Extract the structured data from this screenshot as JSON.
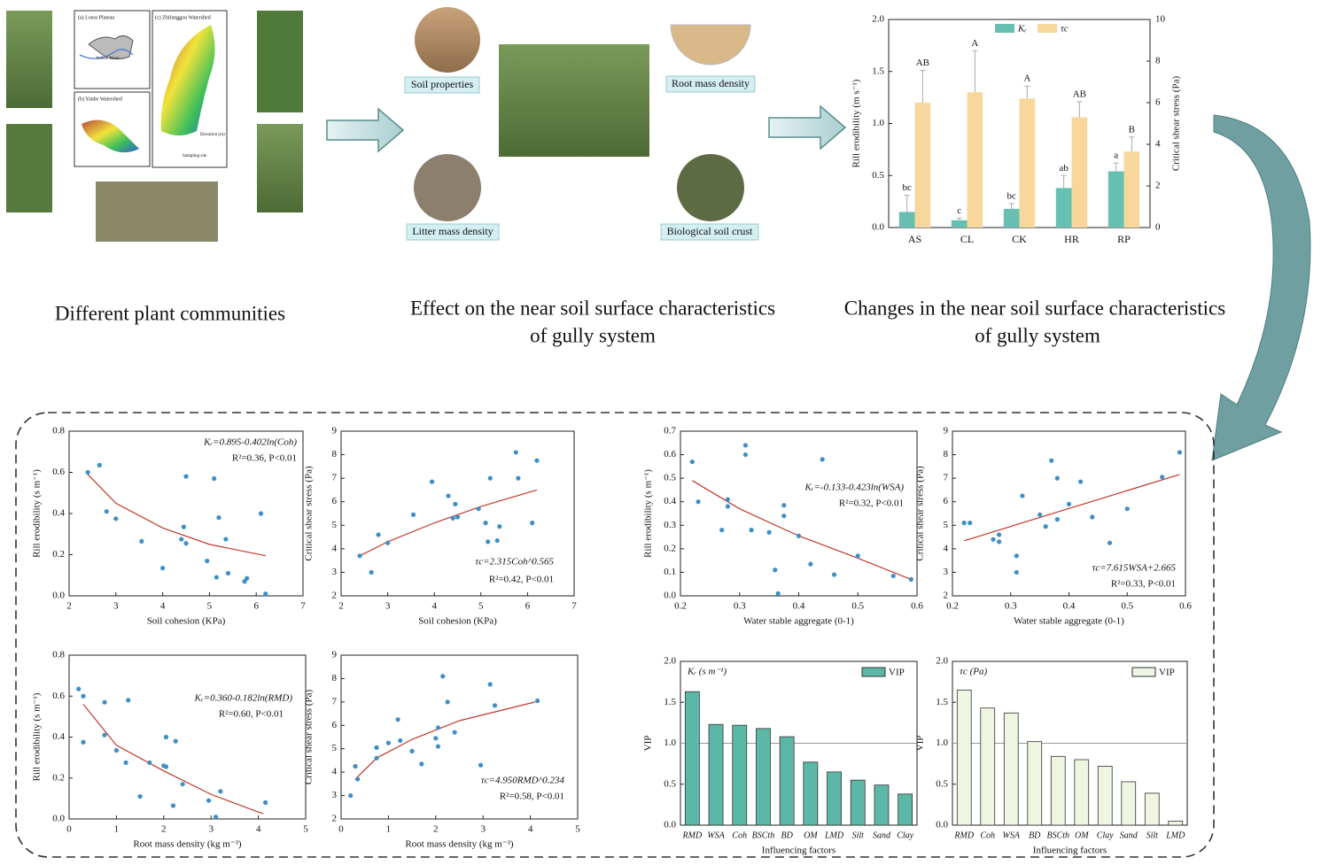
{
  "captions": {
    "communities": "Different plant communities",
    "effect": [
      "Effect on the near soil surface characteristics",
      "of gully system"
    ],
    "changes": [
      "Changes in the near soil surface characteristics",
      "of gully system"
    ]
  },
  "photo_labels": [
    "Soil properties",
    "Root mass density",
    "Litter mass density",
    "Biological soil crust"
  ],
  "map_labels": [
    "(a) Loess Plateau",
    "(b) Yanhe Watershed",
    "(c) Zhifanggou Watershed",
    "Yellow River",
    "Elevation (m)",
    "Sampling site"
  ],
  "chart_data": [
    {
      "type": "grouped-bar",
      "categories": [
        "AS",
        "CL",
        "CK",
        "HR",
        "RP"
      ],
      "ylabel": "Rill erodibility (m s⁻¹)",
      "y2label": "Critical shear stress (Pa)",
      "ylim": [
        0,
        2
      ],
      "yticks": [
        {
          "value": 0,
          "label": "0.0"
        },
        0.5,
        {
          "value": 1,
          "label": "1.0"
        },
        1.5,
        {
          "value": 2,
          "label": "2.0"
        }
      ],
      "y2lim": [
        0,
        10
      ],
      "y2ticks": [
        0,
        2,
        4,
        6,
        8,
        10
      ],
      "series": [
        {
          "name": "Kᵣ",
          "color": "#66bfb0",
          "values": [
            0.15,
            0.07,
            0.18,
            0.38,
            0.54
          ],
          "errors": [
            0.16,
            0.02,
            0.05,
            0.12,
            0.08
          ],
          "letters": [
            "bc",
            "c",
            "bc",
            "ab",
            "a"
          ]
        },
        {
          "name": "τc",
          "color": "#f7d79b",
          "axis": "y2",
          "values": [
            6.0,
            6.5,
            6.2,
            5.3,
            3.65
          ],
          "errors": [
            1.55,
            2.0,
            0.6,
            0.75,
            0.7
          ],
          "letters": [
            "AB",
            "A",
            "A",
            "AB",
            "B"
          ]
        }
      ]
    },
    {
      "type": "scatter",
      "xlabel": "Soil cohesion (KPa)",
      "ylabel": "Rill erodibility (s m⁻¹)",
      "xlim": [
        2,
        7
      ],
      "xticks": [
        2,
        3,
        4,
        5,
        6,
        7
      ],
      "ylim": [
        0,
        0.8
      ],
      "yticks": [
        {
          "value": 0,
          "label": "0.0"
        },
        0.2,
        0.4,
        0.6,
        0.8
      ],
      "color": "#3d8fc6",
      "x": [
        2.4,
        2.65,
        2.8,
        3.0,
        3.55,
        4.0,
        4.4,
        4.45,
        4.5,
        4.5,
        4.95,
        5.1,
        5.15,
        5.2,
        5.35,
        5.4,
        5.75,
        5.8,
        6.1,
        6.2
      ],
      "values": [
        0.6,
        0.635,
        0.41,
        0.375,
        0.265,
        0.135,
        0.275,
        0.335,
        0.255,
        0.58,
        0.17,
        0.57,
        0.09,
        0.38,
        0.275,
        0.11,
        0.07,
        0.085,
        0.4,
        0.01
      ],
      "fit": {
        "color": "#c0392b",
        "x": [
          2.4,
          3,
          4,
          5,
          6.2
        ],
        "y": [
          0.59,
          0.45,
          0.33,
          0.25,
          0.195
        ]
      },
      "equation": "Kᵣ=0.895-0.402ln(Coh)",
      "stats": "R²=0.36, P<0.01"
    },
    {
      "type": "scatter",
      "xlabel": "Soil cohesion (KPa)",
      "ylabel": "Critical shear stress (Pa)",
      "xlim": [
        2,
        7
      ],
      "xticks": [
        2,
        3,
        4,
        5,
        6,
        7
      ],
      "ylim": [
        2,
        9
      ],
      "yticks": [
        2,
        3,
        4,
        5,
        6,
        7,
        8,
        9
      ],
      "color": "#3d8fc6",
      "x": [
        2.4,
        2.65,
        2.8,
        3.0,
        3.55,
        3.95,
        4.3,
        4.4,
        4.45,
        4.5,
        4.95,
        5.1,
        5.15,
        5.2,
        5.35,
        5.4,
        5.75,
        5.8,
        6.1,
        6.2
      ],
      "values": [
        3.7,
        3.0,
        4.6,
        4.25,
        5.45,
        6.85,
        6.25,
        5.3,
        5.9,
        5.35,
        5.7,
        5.1,
        4.3,
        7.0,
        4.35,
        4.95,
        8.1,
        7.0,
        5.1,
        7.75
      ],
      "fit": {
        "color": "#c0392b",
        "x": [
          2.4,
          3,
          4,
          5,
          6.2
        ],
        "y": [
          3.7,
          4.3,
          5.1,
          5.8,
          6.5
        ]
      },
      "equation": "τc=2.315Coh^0.565",
      "stats": "R²=0.42, P<0.01"
    },
    {
      "type": "scatter",
      "xlabel": "Water stable aggregate (0-1)",
      "ylabel": "Rill erodibility (s m⁻¹)",
      "xlim": [
        0.2,
        0.6
      ],
      "xticks": [
        0.2,
        0.3,
        0.4,
        0.5,
        0.6
      ],
      "ylim": [
        0,
        0.7
      ],
      "yticks": [
        {
          "value": 0,
          "label": "0.0"
        },
        0.1,
        0.2,
        0.3,
        0.4,
        0.5,
        0.6,
        0.7
      ],
      "color": "#3d8fc6",
      "x": [
        0.22,
        0.23,
        0.27,
        0.28,
        0.28,
        0.31,
        0.31,
        0.32,
        0.35,
        0.36,
        0.365,
        0.375,
        0.375,
        0.4,
        0.42,
        0.44,
        0.46,
        0.5,
        0.56,
        0.59
      ],
      "values": [
        0.57,
        0.4,
        0.28,
        0.38,
        0.41,
        0.64,
        0.6,
        0.28,
        0.27,
        0.11,
        0.01,
        0.385,
        0.34,
        0.255,
        0.135,
        0.58,
        0.09,
        0.17,
        0.085,
        0.07
      ],
      "fit": {
        "color": "#c0392b",
        "x": [
          0.22,
          0.3,
          0.4,
          0.5,
          0.59
        ],
        "y": [
          0.49,
          0.37,
          0.255,
          0.16,
          0.07
        ]
      },
      "equation": "Kᵣ=-0.133-0.423ln(WSA)",
      "stats": "R²=0.32, P<0.01"
    },
    {
      "type": "scatter",
      "xlabel": "Water stable aggregate (0-1)",
      "ylabel": "Critical shear stress (Pa)",
      "xlim": [
        0.2,
        0.6
      ],
      "xticks": [
        0.2,
        0.3,
        0.4,
        0.5,
        0.6
      ],
      "ylim": [
        2,
        9
      ],
      "yticks": [
        2,
        3,
        4,
        5,
        6,
        7,
        8,
        9
      ],
      "color": "#3d8fc6",
      "x": [
        0.22,
        0.23,
        0.27,
        0.28,
        0.28,
        0.31,
        0.31,
        0.32,
        0.35,
        0.36,
        0.37,
        0.38,
        0.38,
        0.4,
        0.42,
        0.44,
        0.47,
        0.5,
        0.56,
        0.59
      ],
      "values": [
        5.1,
        5.1,
        4.4,
        4.3,
        4.6,
        3.7,
        3.0,
        6.25,
        5.45,
        4.95,
        7.75,
        7.0,
        5.25,
        5.9,
        6.85,
        5.35,
        4.25,
        5.7,
        7.05,
        8.1
      ],
      "fit": {
        "color": "#c0392b",
        "x": [
          0.22,
          0.59
        ],
        "y": [
          4.34,
          7.16
        ]
      },
      "equation": "τc=7.615WSA+2.665",
      "stats": "R²=0.33, P<0.01"
    },
    {
      "type": "scatter",
      "xlabel": "Root mass density (kg m⁻³)",
      "ylabel": "Rill erodibility (s m⁻¹)",
      "xlim": [
        0,
        5
      ],
      "xticks": [
        0,
        1,
        2,
        3,
        4,
        5
      ],
      "ylim": [
        0,
        0.8
      ],
      "yticks": [
        {
          "value": 0,
          "label": "0.0"
        },
        0.2,
        0.4,
        0.6,
        0.8
      ],
      "color": "#3d8fc6",
      "x": [
        0.2,
        0.3,
        0.3,
        0.75,
        0.75,
        1.0,
        1.2,
        1.25,
        1.5,
        1.7,
        2.0,
        2.05,
        2.05,
        2.2,
        2.25,
        2.4,
        2.95,
        3.1,
        3.2,
        4.15
      ],
      "values": [
        0.635,
        0.6,
        0.375,
        0.57,
        0.41,
        0.335,
        0.275,
        0.58,
        0.11,
        0.275,
        0.26,
        0.4,
        0.255,
        0.065,
        0.38,
        0.17,
        0.09,
        0.01,
        0.135,
        0.08
      ],
      "fit": {
        "color": "#c0392b",
        "x": [
          0.3,
          1,
          2,
          3,
          4.1
        ],
        "y": [
          0.56,
          0.36,
          0.235,
          0.12,
          0.025
        ]
      },
      "equation": "Kᵣ=0.360-0.182ln(RMD)",
      "stats": "R²=0.60, P<0.01"
    },
    {
      "type": "scatter",
      "xlabel": "Root mass density (kg m⁻³)",
      "ylabel": "Critical shear stress (Pa)",
      "xlim": [
        0,
        5
      ],
      "xticks": [
        0,
        1,
        2,
        3,
        4,
        5
      ],
      "ylim": [
        2,
        9
      ],
      "yticks": [
        2,
        3,
        4,
        5,
        6,
        7,
        8,
        9
      ],
      "color": "#3d8fc6",
      "x": [
        0.2,
        0.3,
        0.35,
        0.75,
        0.75,
        1.0,
        1.2,
        1.25,
        1.5,
        1.7,
        2.0,
        2.05,
        2.05,
        2.15,
        2.25,
        2.4,
        2.95,
        3.15,
        3.25,
        4.15
      ],
      "values": [
        3.0,
        4.25,
        3.7,
        5.05,
        4.6,
        5.25,
        6.25,
        5.35,
        4.9,
        4.35,
        5.45,
        5.9,
        5.1,
        8.1,
        7.0,
        5.7,
        4.3,
        7.75,
        6.85,
        7.05
      ],
      "fit": {
        "color": "#c0392b",
        "x": [
          0.3,
          0.75,
          1.5,
          2.5,
          4.1
        ],
        "y": [
          3.7,
          4.6,
          5.4,
          6.2,
          7.0
        ]
      },
      "equation": "τc=4.950RMD^0.234",
      "stats": "R²=0.58, P<0.01"
    },
    {
      "type": "bar",
      "panel_label": "Kᵣ (s m⁻¹)",
      "xlabel": "Influencing factors",
      "ylabel": "VIP",
      "legend": "VIP",
      "color": "#5cb8a6",
      "hline": 1,
      "ylim": [
        0,
        2
      ],
      "yticks": [
        {
          "value": 0,
          "label": "0.0"
        },
        0.5,
        {
          "value": 1,
          "label": "1.0"
        },
        1.5,
        {
          "value": 2,
          "label": "2.0"
        }
      ],
      "categories": [
        "RMD",
        "WSA",
        "Coh",
        "BSCth",
        "BD",
        "OM",
        "LMD",
        "Silt",
        "Sand",
        "Clay"
      ],
      "values": [
        1.63,
        1.23,
        1.22,
        1.18,
        1.08,
        0.77,
        0.65,
        0.55,
        0.49,
        0.38
      ]
    },
    {
      "type": "bar",
      "panel_label": "τc (Pa)",
      "xlabel": "Influencing factors",
      "ylabel": "VIP",
      "legend": "VIP",
      "color": "#eef5e0",
      "hline": 1,
      "ylim": [
        0,
        2
      ],
      "yticks": [
        {
          "value": 0,
          "label": "0.0"
        },
        0.5,
        {
          "value": 1,
          "label": "1.0"
        },
        1.5,
        {
          "value": 2,
          "label": "2.0"
        }
      ],
      "categories": [
        "RMD",
        "Coh",
        "WSA",
        "BD",
        "BSCth",
        "OM",
        "Clay",
        "Sand",
        "Silt",
        "LMD"
      ],
      "values": [
        1.65,
        1.43,
        1.37,
        1.02,
        0.84,
        0.8,
        0.72,
        0.53,
        0.39,
        0.05
      ]
    }
  ]
}
